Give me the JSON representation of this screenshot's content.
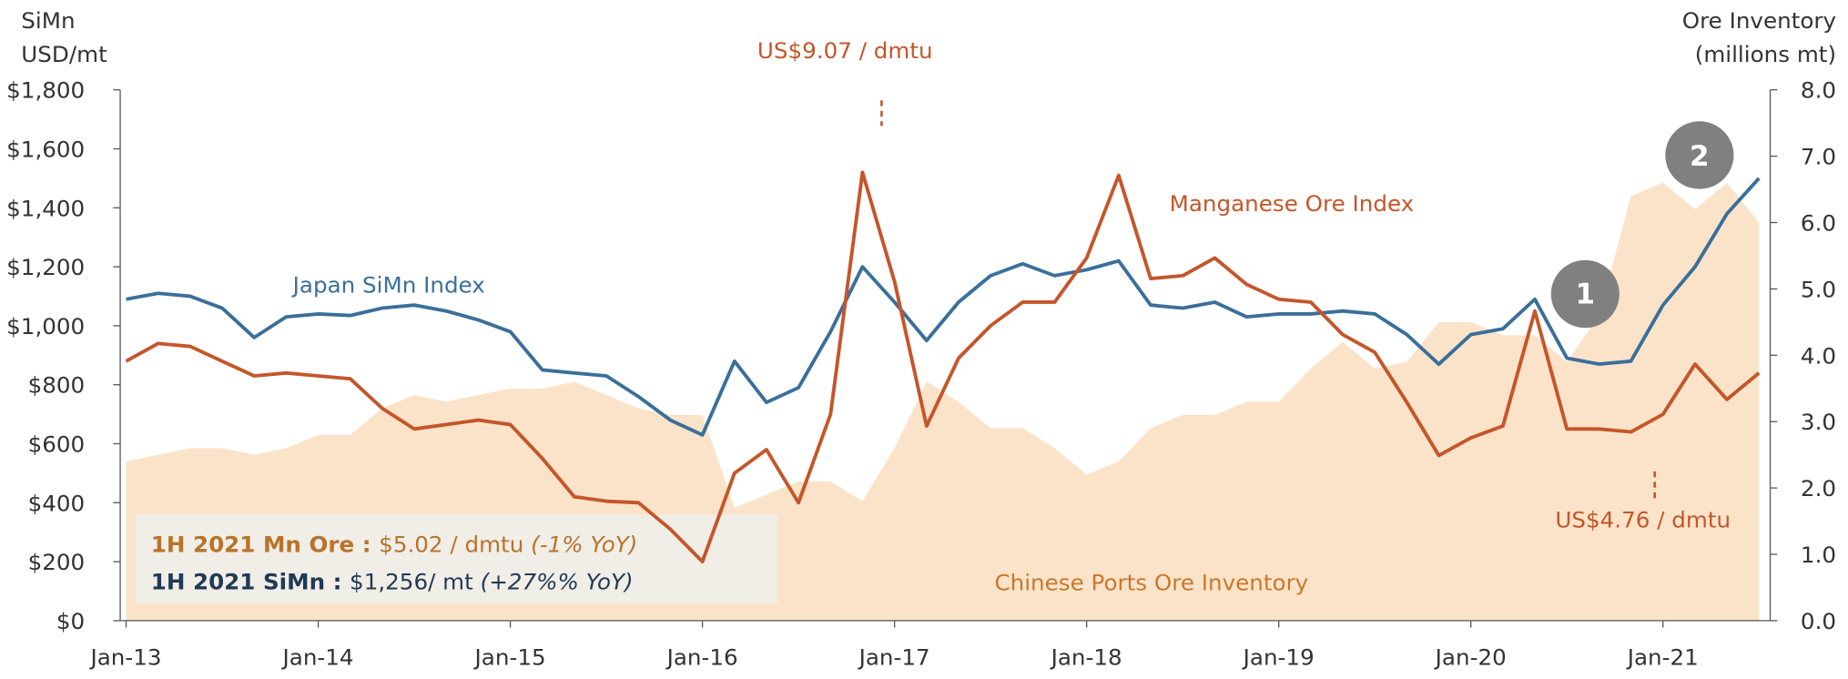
{
  "chart_data": {
    "type": "line",
    "y_axis_label": [
      "SiMn",
      "USD/mt"
    ],
    "y2_axis_label": [
      "Ore Inventory",
      "(millions mt)"
    ],
    "categories": [
      "Jan-13",
      null,
      null,
      null,
      null,
      null,
      "Jan-14",
      null,
      null,
      null,
      null,
      null,
      "Jan-15",
      null,
      null,
      null,
      null,
      null,
      "Jan-16",
      null,
      null,
      null,
      null,
      null,
      "Jan-17",
      null,
      null,
      null,
      null,
      null,
      "Jan-18",
      null,
      null,
      null,
      null,
      null,
      "Jan-19",
      null,
      null,
      null,
      null,
      null,
      "Jan-20",
      null,
      null,
      null,
      null,
      null,
      "Jan-21",
      null,
      null,
      null
    ],
    "ylim": [
      0,
      1800
    ],
    "yticks": [
      {
        "value": 0,
        "label": "$0"
      },
      {
        "value": 200,
        "label": "$200"
      },
      {
        "value": 400,
        "label": "$400"
      },
      {
        "value": 600,
        "label": "$600"
      },
      {
        "value": 800,
        "label": "$800"
      },
      {
        "value": 1000,
        "label": "$1,000"
      },
      {
        "value": 1200,
        "label": "$1,200"
      },
      {
        "value": 1400,
        "label": "$1,400"
      },
      {
        "value": 1600,
        "label": "$1,600"
      },
      {
        "value": 1800,
        "label": "$1,800"
      }
    ],
    "y2lim": [
      0,
      8
    ],
    "y2ticks": [
      {
        "value": 0,
        "label": "0.0"
      },
      {
        "value": 1,
        "label": "1.0"
      },
      {
        "value": 2,
        "label": "2.0"
      },
      {
        "value": 3,
        "label": "3.0"
      },
      {
        "value": 4,
        "label": "4.0"
      },
      {
        "value": 5,
        "label": "5.0"
      },
      {
        "value": 6,
        "label": "6.0"
      },
      {
        "value": 7,
        "label": "7.0"
      },
      {
        "value": 8,
        "label": "8.0"
      }
    ],
    "series": [
      {
        "name": "Chinese Ports Ore Inventory",
        "kind": "area",
        "axis": "y2",
        "color": "#fbe3c9",
        "values": [
          2.4,
          2.5,
          2.6,
          2.6,
          2.5,
          2.6,
          2.8,
          2.8,
          3.2,
          3.4,
          3.3,
          3.4,
          3.5,
          3.5,
          3.6,
          3.4,
          3.2,
          3.1,
          3.1,
          1.7,
          1.9,
          2.1,
          2.1,
          1.8,
          2.6,
          3.6,
          3.3,
          2.9,
          2.9,
          2.6,
          2.2,
          2.4,
          2.9,
          3.1,
          3.1,
          3.3,
          3.3,
          3.8,
          4.2,
          3.8,
          3.9,
          4.5,
          4.5,
          4.3,
          4.3,
          3.9,
          4.6,
          6.4,
          6.6,
          6.2,
          6.6,
          6.0
        ]
      },
      {
        "name": "Japan SiMn Index",
        "kind": "line",
        "color": "#3a6f9a",
        "values": [
          1090,
          1110,
          1100,
          1060,
          960,
          1030,
          1040,
          1035,
          1060,
          1070,
          1050,
          1020,
          980,
          850,
          840,
          830,
          760,
          680,
          630,
          880,
          740,
          790,
          980,
          1200,
          1080,
          950,
          1080,
          1170,
          1210,
          1170,
          1190,
          1220,
          1070,
          1060,
          1080,
          1030,
          1040,
          1040,
          1050,
          1040,
          970,
          870,
          970,
          990,
          1090,
          890,
          870,
          880,
          1070,
          1200,
          1380,
          1500
        ]
      },
      {
        "name": "Manganese Ore Index",
        "kind": "line",
        "color": "#c4562a",
        "values": [
          880,
          940,
          930,
          880,
          830,
          840,
          830,
          820,
          720,
          650,
          665,
          680,
          665,
          550,
          420,
          405,
          400,
          310,
          200,
          500,
          580,
          400,
          700,
          1520,
          1150,
          660,
          890,
          1000,
          1080,
          1080,
          1230,
          1510,
          1160,
          1170,
          1230,
          1140,
          1090,
          1080,
          970,
          910,
          740,
          560,
          620,
          660,
          1050,
          650,
          650,
          640,
          700,
          870,
          750,
          840
        ]
      }
    ],
    "annotations": {
      "peak": "US$9.07 / dmtu",
      "low": "US$4.76 / dmtu",
      "marker_1": "1",
      "marker_2": "2"
    },
    "summary": [
      {
        "label": "1H 2021 Mn Ore : ",
        "value": "$5.02 / dmtu ",
        "change": "(-1% YoY)"
      },
      {
        "label": "1H 2021 SiMn : ",
        "value": "$1,256/ mt ",
        "change": "(+27%% YoY)"
      }
    ]
  }
}
